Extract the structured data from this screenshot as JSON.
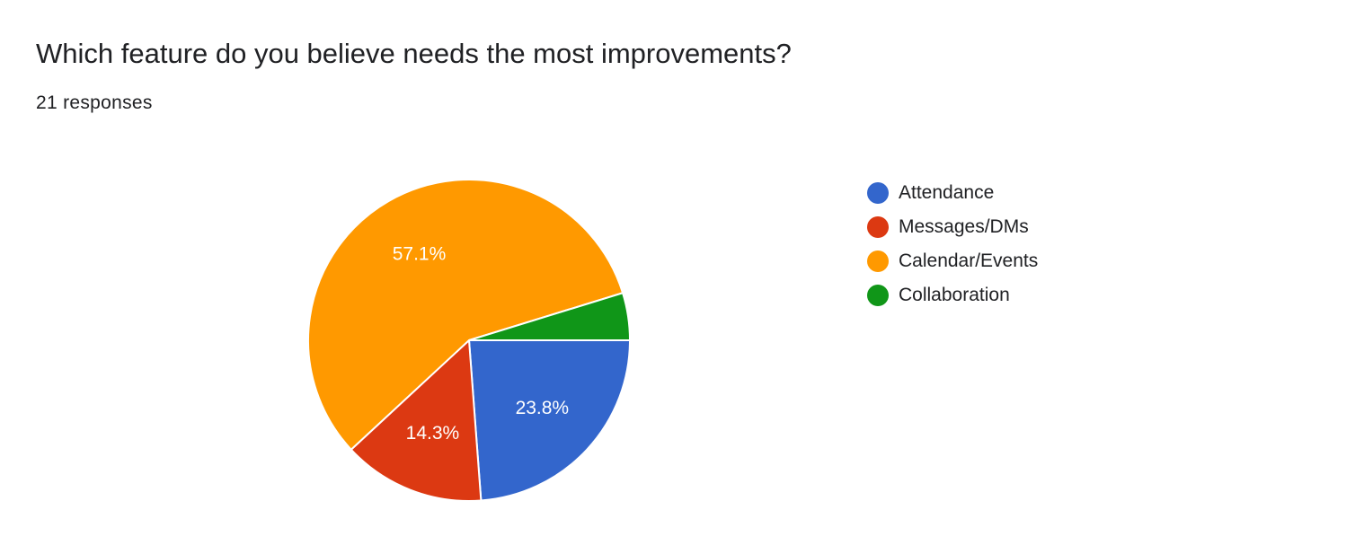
{
  "question": {
    "title": "Which feature do you believe needs the most improvements?",
    "responses": "21 responses"
  },
  "chart_data": {
    "type": "pie",
    "total_responses": 21,
    "start_angle_deg": 90,
    "direction": "clockwise",
    "legend_position": "right",
    "slices": [
      {
        "label": "Attendance",
        "value": 5,
        "percent_label": "23.8%",
        "color": "#3366cc"
      },
      {
        "label": "Messages/DMs",
        "value": 3,
        "percent_label": "14.3%",
        "color": "#dc3912"
      },
      {
        "label": "Calendar/Events",
        "value": 12,
        "percent_label": "57.1%",
        "color": "#ff9900"
      },
      {
        "label": "Collaboration",
        "value": 1,
        "percent_label": "",
        "color": "#109618"
      }
    ]
  }
}
